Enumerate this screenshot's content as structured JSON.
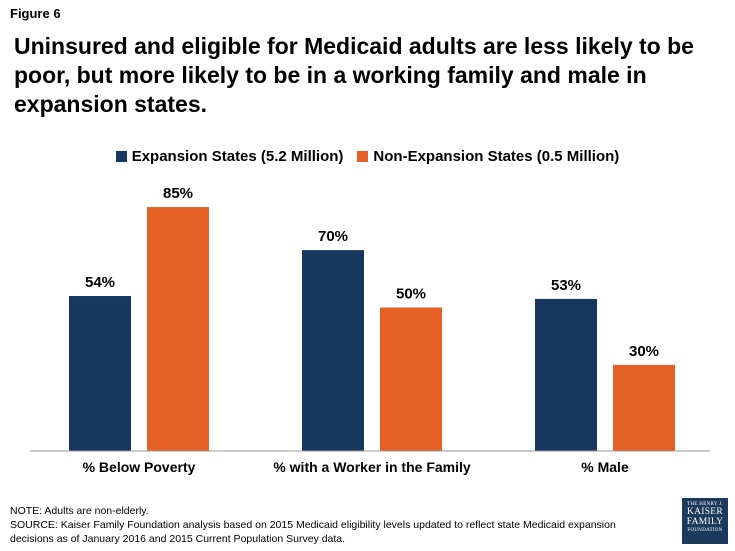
{
  "figure_label": "Figure 6",
  "title": "Uninsured and eligible for Medicaid adults are less likely to be poor, but more likely to be in a working family and male in expansion states.",
  "legend": {
    "series1": "Expansion States (5.2 Million)",
    "series2": "Non-Expansion States (0.5 Million)"
  },
  "colors": {
    "series1": "#17375e",
    "series2": "#e46025",
    "axis": "#999999"
  },
  "chart_data": {
    "type": "bar",
    "categories": [
      "% Below Poverty",
      "% with a Worker in the Family",
      "% Male"
    ],
    "series": [
      {
        "name": "Expansion States (5.2 Million)",
        "values": [
          54,
          70,
          53
        ],
        "labels": [
          "54%",
          "70%",
          "53%"
        ]
      },
      {
        "name": "Non-Expansion States (0.5 Million)",
        "values": [
          85,
          50,
          30
        ],
        "labels": [
          "85%",
          "50%",
          "30%"
        ]
      }
    ],
    "ylim": [
      0,
      100
    ],
    "grid": false,
    "legend_position": "top-center"
  },
  "notes": {
    "note": "NOTE:  Adults are non-elderly.",
    "source": "SOURCE: Kaiser Family Foundation analysis based on 2015 Medicaid eligibility levels updated to reflect state Medicaid expansion decisions as of January 2016 and 2015 Current Population Survey data."
  },
  "logo": {
    "line1": "THE HENRY J.",
    "line2": "KAISER",
    "line3": "FAMILY",
    "line4": "FOUNDATION"
  }
}
